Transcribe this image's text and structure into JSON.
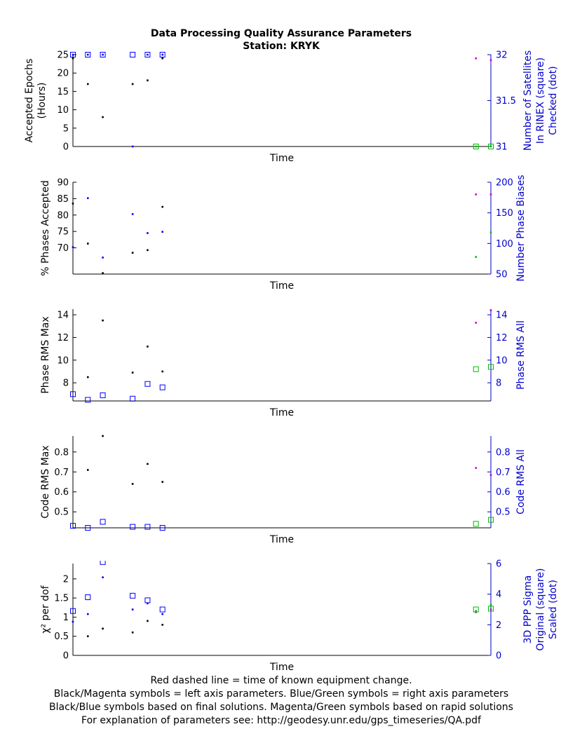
{
  "title": "Data Processing Quality Assurance Parameters",
  "subtitle": "Station: KRYK",
  "footer": [
    "Red dashed line = time of known equipment change.",
    "Black/Magenta symbols = left axis parameters. Blue/Green symbols = right axis parameters",
    "Black/Blue symbols based on final solutions.  Magenta/Green symbols based on rapid solutions",
    "For explanation of parameters see: http://geodesy.unr.edu/gps_timeseries/QA.pdf"
  ],
  "colors": {
    "final_left": "#000000",
    "rapid_left": "#cc00cc",
    "final_right": "#0000ff",
    "rapid_right": "#00bb00",
    "right_axis": "#0000cc"
  },
  "chart_data": [
    {
      "type": "scatter",
      "xlabel": "Time",
      "ylabel": [
        "Accepted Epochs",
        "(Hours)"
      ],
      "y2label": [
        "Number of Satellites",
        "In RINEX (square)",
        "Checked (dot)"
      ],
      "ylim": [
        0,
        25
      ],
      "y2lim": [
        31,
        32
      ],
      "yticks": [
        "0",
        "5",
        "10",
        "15",
        "20",
        "25"
      ],
      "y2ticks": [
        "31",
        "31.5",
        "32"
      ],
      "grid": false,
      "series": [
        {
          "axis": "left",
          "source": "final",
          "marker": "dot",
          "x": [
            0,
            1,
            2,
            4,
            5,
            6
          ],
          "y": [
            24,
            17,
            8,
            17,
            18,
            24
          ]
        },
        {
          "axis": "left",
          "source": "rapid",
          "marker": "dot",
          "x": [
            27,
            28
          ],
          "y": [
            24,
            23.5
          ]
        },
        {
          "axis": "right",
          "source": "final",
          "marker": "square",
          "x": [
            0,
            1,
            2,
            4,
            5,
            6
          ],
          "y": [
            32,
            32,
            32,
            32,
            32,
            32
          ]
        },
        {
          "axis": "right",
          "source": "final",
          "marker": "dot",
          "x": [
            0,
            1,
            2,
            4,
            5,
            6
          ],
          "y": [
            32,
            32,
            32,
            31,
            32,
            32
          ]
        },
        {
          "axis": "right",
          "source": "rapid",
          "marker": "square",
          "x": [
            27,
            28
          ],
          "y": [
            31,
            31
          ]
        },
        {
          "axis": "right",
          "source": "rapid",
          "marker": "dot",
          "x": [
            27,
            28
          ],
          "y": [
            31,
            31
          ]
        }
      ]
    },
    {
      "type": "scatter",
      "xlabel": "Time",
      "ylabel": [
        "% Phases Accepted"
      ],
      "y2label": [
        "Number Phase Biases"
      ],
      "ylim": [
        62,
        90
      ],
      "y2lim": [
        50,
        200
      ],
      "yticks": [
        "70",
        "75",
        "80",
        "85",
        "90"
      ],
      "y2ticks": [
        "50",
        "100",
        "150",
        "200"
      ],
      "grid": false,
      "series": [
        {
          "axis": "left",
          "source": "final",
          "marker": "dot",
          "x": [
            0,
            1,
            2,
            4,
            5,
            6
          ],
          "y": [
            83.5,
            71.3,
            62.3,
            68.5,
            69.3,
            82.5
          ]
        },
        {
          "axis": "left",
          "source": "rapid",
          "marker": "dot",
          "x": [
            27,
            28
          ],
          "y": [
            86.3,
            86.3
          ]
        },
        {
          "axis": "right",
          "source": "final",
          "marker": "dot",
          "x": [
            0,
            1,
            2,
            4,
            5,
            6
          ],
          "y": [
            94,
            174,
            77,
            148,
            117,
            119
          ]
        },
        {
          "axis": "right",
          "source": "rapid",
          "marker": "dot",
          "x": [
            27,
            28
          ],
          "y": [
            78,
            118
          ]
        }
      ]
    },
    {
      "type": "scatter",
      "xlabel": "Time",
      "ylabel": [
        "Phase RMS Max"
      ],
      "y2label": [
        "Phase RMS All"
      ],
      "ylim": [
        6.4,
        14.5
      ],
      "y2lim": [
        6.4,
        14.5
      ],
      "yticks": [
        "8",
        "10",
        "12",
        "14"
      ],
      "y2ticks": [
        "8",
        "10",
        "12",
        "14"
      ],
      "grid": false,
      "series": [
        {
          "axis": "left",
          "source": "final",
          "marker": "dot",
          "x": [
            1,
            2,
            4,
            5,
            6
          ],
          "y": [
            8.5,
            13.5,
            8.9,
            11.2,
            9.0
          ]
        },
        {
          "axis": "left",
          "source": "rapid",
          "marker": "dot",
          "x": [
            27,
            28
          ],
          "y": [
            13.3,
            14.4
          ]
        },
        {
          "axis": "right",
          "source": "final",
          "marker": "square",
          "x": [
            0,
            1,
            2,
            4,
            5,
            6
          ],
          "y": [
            7.0,
            6.5,
            6.9,
            6.6,
            7.9,
            7.6
          ]
        },
        {
          "axis": "right",
          "source": "rapid",
          "marker": "square",
          "x": [
            27,
            28
          ],
          "y": [
            9.2,
            9.4
          ]
        }
      ]
    },
    {
      "type": "scatter",
      "xlabel": "Time",
      "ylabel": [
        "Code RMS Max"
      ],
      "y2label": [
        "Code RMS All"
      ],
      "ylim": [
        0.42,
        0.88
      ],
      "y2lim": [
        0.42,
        0.88
      ],
      "yticks": [
        "0.5",
        "0.6",
        "0.7",
        "0.8"
      ],
      "y2ticks": [
        "0.5",
        "0.6",
        "0.7",
        "0.8"
      ],
      "grid": false,
      "series": [
        {
          "axis": "left",
          "source": "final",
          "marker": "dot",
          "x": [
            1,
            2,
            4,
            5,
            6
          ],
          "y": [
            0.71,
            0.88,
            0.64,
            0.74,
            0.65
          ]
        },
        {
          "axis": "left",
          "source": "rapid",
          "marker": "dot",
          "x": [
            27,
            28
          ],
          "y": [
            0.72,
            0.685
          ]
        },
        {
          "axis": "right",
          "source": "final",
          "marker": "square",
          "x": [
            0,
            1,
            2,
            4,
            5,
            6
          ],
          "y": [
            0.43,
            0.42,
            0.45,
            0.425,
            0.425,
            0.42
          ]
        },
        {
          "axis": "right",
          "source": "rapid",
          "marker": "square",
          "x": [
            27,
            28
          ],
          "y": [
            0.44,
            0.46
          ]
        }
      ]
    },
    {
      "type": "scatter",
      "xlabel": "Time",
      "ylabel": [
        "χ² per dof"
      ],
      "y2label": [
        "3D PPP Sigma",
        "Original (square)",
        "Scaled (dot)"
      ],
      "ylim": [
        0,
        2.4
      ],
      "y2lim": [
        0,
        6
      ],
      "yticks": [
        "0",
        "0.5",
        "1",
        "1.5",
        "2"
      ],
      "y2ticks": [
        "0",
        "2",
        "4",
        "6"
      ],
      "grid": false,
      "series": [
        {
          "axis": "left",
          "source": "final",
          "marker": "dot",
          "x": [
            1,
            2,
            4,
            5,
            6
          ],
          "y": [
            0.5,
            0.7,
            0.6,
            0.9,
            0.8
          ]
        },
        {
          "axis": "left",
          "source": "rapid",
          "marker": "dot",
          "x": [
            27,
            28
          ],
          "y": [
            1.13,
            1.2
          ]
        },
        {
          "axis": "right",
          "source": "final",
          "marker": "square",
          "x": [
            0,
            1,
            2,
            4,
            5,
            6
          ],
          "y": [
            2.9,
            3.8,
            6.1,
            3.9,
            3.6,
            3.0
          ]
        },
        {
          "axis": "right",
          "source": "final",
          "marker": "dot",
          "x": [
            0,
            1,
            2,
            4,
            5,
            6
          ],
          "y": [
            2.2,
            2.7,
            5.1,
            3.0,
            3.4,
            2.7
          ]
        },
        {
          "axis": "right",
          "source": "rapid",
          "marker": "square",
          "x": [
            27,
            28
          ],
          "y": [
            3.0,
            3.05
          ]
        },
        {
          "axis": "right",
          "source": "rapid",
          "marker": "dot",
          "x": [
            27,
            28
          ],
          "y": [
            2.9,
            3.3
          ]
        }
      ]
    }
  ]
}
